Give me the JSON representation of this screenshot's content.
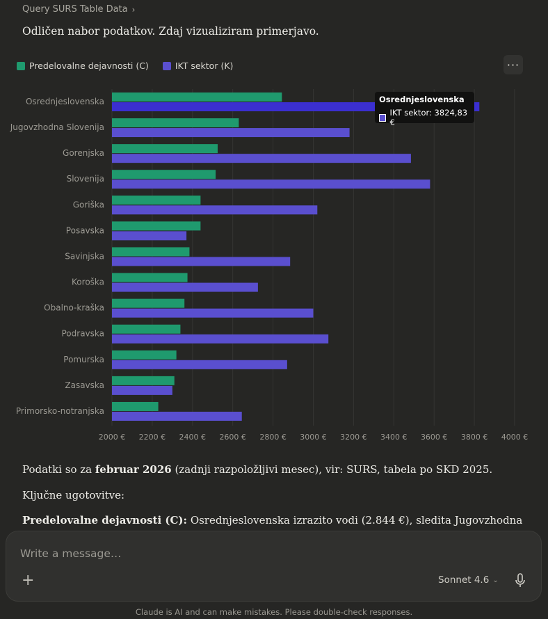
{
  "breadcrumb": {
    "label": "Query SURS Table Data"
  },
  "intro": "Odličen nabor podatkov. Zdaj vizualiziram primerjavo.",
  "legend": [
    {
      "label": "Predelovalne dejavnosti (C)",
      "color": "#1f9a6e"
    },
    {
      "label": "IKT sektor (K)",
      "color": "#5a4fcf"
    }
  ],
  "more_button": {
    "label": "···"
  },
  "tooltip": {
    "title": "Osrednjeslovenska",
    "row": "IKT sektor: 3824,83 €"
  },
  "chart_data": {
    "type": "bar",
    "orientation": "horizontal",
    "categories": [
      "Osrednjeslovenska",
      "Jugovzhodna Slovenija",
      "Gorenjska",
      "Slovenija",
      "Goriška",
      "Posavska",
      "Savinjska",
      "Koroška",
      "Obalno-kraška",
      "Podravska",
      "Pomurska",
      "Zasavska",
      "Primorsko-notranjska"
    ],
    "series": [
      {
        "name": "Predelovalne dejavnosti (C)",
        "color": "#1f9a6e",
        "values": [
          2844,
          2630,
          2525,
          2515,
          2440,
          2440,
          2385,
          2375,
          2360,
          2340,
          2320,
          2310,
          2230
        ]
      },
      {
        "name": "IKT sektor (K)",
        "color": "#5a4fcf",
        "values": [
          3824.83,
          3180,
          3485,
          3580,
          3020,
          2370,
          2885,
          2725,
          3000,
          3075,
          2870,
          2300,
          2645
        ]
      }
    ],
    "xlim": [
      2000,
      4000
    ],
    "xticks": [
      "2000 €",
      "2200 €",
      "2400 €",
      "2600 €",
      "2800 €",
      "3000 €",
      "3200 €",
      "3400 €",
      "3600 €",
      "3800 €",
      "4000 €"
    ],
    "xtick_values": [
      2000,
      2200,
      2400,
      2600,
      2800,
      3000,
      3200,
      3400,
      3600,
      3800,
      4000
    ],
    "grid": true,
    "legend_position": "top-left",
    "highlighted": {
      "category": "Osrednjeslovenska",
      "series": "IKT sektor (K)",
      "color": "#3b2fd0"
    }
  },
  "paragraphs": {
    "p1_before": "Podatki so za ",
    "p1_bold": "februar 2026",
    "p1_after": " (zadnji razpoložljivi mesec), vir: SURS, tabela po SKD 2025.",
    "p2": "Ključne ugotovitve:",
    "p3_bold": "Predelovalne dejavnosti (C):",
    "p3_after": " Osrednjeslovenska izrazito vodi (2.844 €), sledita Jugovzhodna"
  },
  "composer": {
    "placeholder": "Write a message…",
    "plus_label": "+",
    "model_label": "Sonnet 4.6"
  },
  "disclaimer": "Claude is AI and can make mistakes. Please double-check responses."
}
